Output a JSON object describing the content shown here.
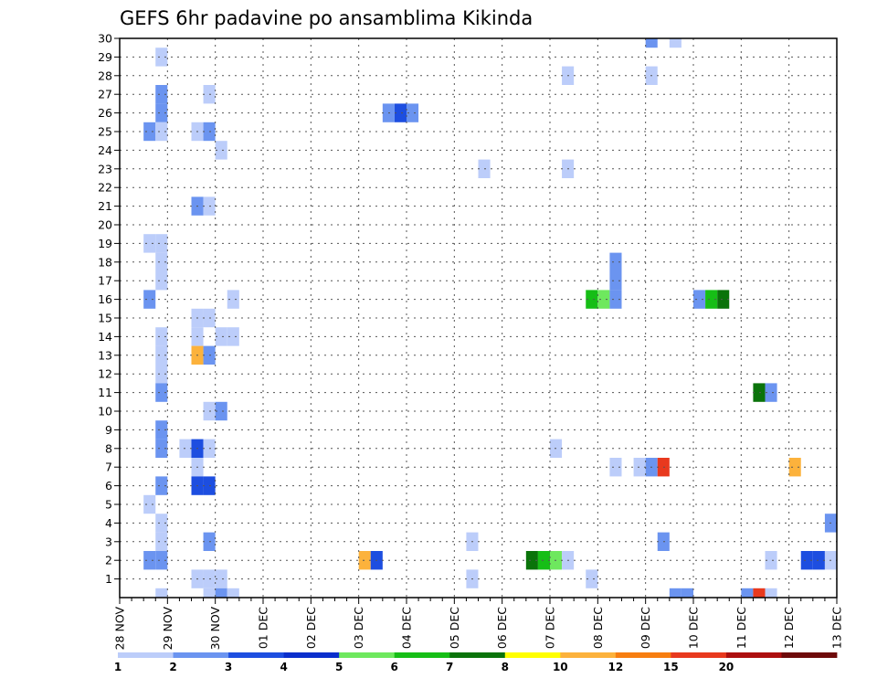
{
  "chart_data": {
    "type": "heatmap",
    "title": "GEFS 6hr padavine po ansamblima Kikinda",
    "xlabel": "",
    "ylabel": "",
    "x_start_label": "28 NOV",
    "x_ticks": [
      "28 NOV",
      "29 NOV",
      "30 NOV",
      "01 DEC",
      "02 DEC",
      "03 DEC",
      "04 DEC",
      "05 DEC",
      "06 DEC",
      "07 DEC",
      "08 DEC",
      "09 DEC",
      "10 DEC",
      "11 DEC",
      "12 DEC",
      "13 DEC"
    ],
    "x_range_days": [
      0,
      15
    ],
    "steps_per_day": 4,
    "y_ticks": [
      1,
      2,
      3,
      4,
      5,
      6,
      7,
      8,
      9,
      10,
      11,
      12,
      13,
      14,
      15,
      16,
      17,
      18,
      19,
      20,
      21,
      22,
      23,
      24,
      25,
      26,
      27,
      28,
      29,
      30
    ],
    "y_range": [
      0,
      30
    ],
    "grid": true,
    "colorbar": {
      "boundaries": [
        "1",
        "2",
        "3",
        "4",
        "5",
        "6",
        "7",
        "8",
        "10",
        "12",
        "15",
        "20"
      ],
      "colors": [
        "#bccdfa",
        "#6b94f0",
        "#1d4ee0",
        "#0a2fcc",
        "#6ee85e",
        "#16be16",
        "#0a730a",
        "#ffff00",
        "#fcb23c",
        "#f77e10",
        "#e8391e",
        "#ad0f0f",
        "#6e0a0a"
      ]
    },
    "cell_classes": [
      "1-2",
      "2-3",
      "3-4",
      "4-5",
      "5-6",
      "6-7",
      "7-8",
      "8-10",
      "10-12",
      "12-15",
      "15-20",
      ">20"
    ],
    "cells": [
      {
        "member": 30,
        "step": 44,
        "class": 1
      },
      {
        "member": 30,
        "step": 46,
        "class": 0
      },
      {
        "member": 29,
        "step": 3,
        "class": 0
      },
      {
        "member": 28,
        "step": 37,
        "class": 0
      },
      {
        "member": 28,
        "step": 44,
        "class": 0
      },
      {
        "member": 27,
        "step": 3,
        "class": 1
      },
      {
        "member": 27,
        "step": 7,
        "class": 0
      },
      {
        "member": 26,
        "step": 3,
        "class": 1
      },
      {
        "member": 26,
        "step": 22,
        "class": 1
      },
      {
        "member": 26,
        "step": 23,
        "class": 2
      },
      {
        "member": 26,
        "step": 24,
        "class": 1
      },
      {
        "member": 25,
        "step": 2,
        "class": 1
      },
      {
        "member": 25,
        "step": 3,
        "class": 0
      },
      {
        "member": 25,
        "step": 6,
        "class": 0
      },
      {
        "member": 25,
        "step": 7,
        "class": 1
      },
      {
        "member": 24,
        "step": 8,
        "class": 0
      },
      {
        "member": 23,
        "step": 30,
        "class": 0
      },
      {
        "member": 23,
        "step": 37,
        "class": 0
      },
      {
        "member": 21,
        "step": 6,
        "class": 1
      },
      {
        "member": 21,
        "step": 7,
        "class": 0
      },
      {
        "member": 19,
        "step": 2,
        "class": 0
      },
      {
        "member": 19,
        "step": 3,
        "class": 0
      },
      {
        "member": 18,
        "step": 3,
        "class": 0
      },
      {
        "member": 18,
        "step": 41,
        "class": 1
      },
      {
        "member": 17,
        "step": 3,
        "class": 0
      },
      {
        "member": 17,
        "step": 41,
        "class": 1
      },
      {
        "member": 16,
        "step": 2,
        "class": 1
      },
      {
        "member": 16,
        "step": 9,
        "class": 0
      },
      {
        "member": 16,
        "step": 39,
        "class": 5
      },
      {
        "member": 16,
        "step": 40,
        "class": 4
      },
      {
        "member": 16,
        "step": 41,
        "class": 1
      },
      {
        "member": 16,
        "step": 48,
        "class": 1
      },
      {
        "member": 16,
        "step": 49,
        "class": 5
      },
      {
        "member": 16,
        "step": 50,
        "class": 6
      },
      {
        "member": 15,
        "step": 6,
        "class": 0
      },
      {
        "member": 15,
        "step": 7,
        "class": 0
      },
      {
        "member": 14,
        "step": 3,
        "class": 0
      },
      {
        "member": 14,
        "step": 6,
        "class": 0
      },
      {
        "member": 14,
        "step": 8,
        "class": 0
      },
      {
        "member": 14,
        "step": 9,
        "class": 0
      },
      {
        "member": 13,
        "step": 3,
        "class": 0
      },
      {
        "member": 13,
        "step": 6,
        "class": 8
      },
      {
        "member": 13,
        "step": 7,
        "class": 1
      },
      {
        "member": 12,
        "step": 3,
        "class": 0
      },
      {
        "member": 11,
        "step": 3,
        "class": 1
      },
      {
        "member": 11,
        "step": 53,
        "class": 6
      },
      {
        "member": 11,
        "step": 54,
        "class": 1
      },
      {
        "member": 10,
        "step": 7,
        "class": 0
      },
      {
        "member": 10,
        "step": 8,
        "class": 1
      },
      {
        "member": 9,
        "step": 3,
        "class": 1
      },
      {
        "member": 8,
        "step": 3,
        "class": 1
      },
      {
        "member": 8,
        "step": 5,
        "class": 0
      },
      {
        "member": 8,
        "step": 6,
        "class": 2
      },
      {
        "member": 8,
        "step": 7,
        "class": 0
      },
      {
        "member": 8,
        "step": 36,
        "class": 0
      },
      {
        "member": 7,
        "step": 6,
        "class": 0
      },
      {
        "member": 7,
        "step": 41,
        "class": 0
      },
      {
        "member": 7,
        "step": 43,
        "class": 0
      },
      {
        "member": 7,
        "step": 44,
        "class": 1
      },
      {
        "member": 7,
        "step": 45,
        "class": 10
      },
      {
        "member": 7,
        "step": 56,
        "class": 8
      },
      {
        "member": 6,
        "step": 3,
        "class": 1
      },
      {
        "member": 6,
        "step": 6,
        "class": 2
      },
      {
        "member": 6,
        "step": 7,
        "class": 2
      },
      {
        "member": 5,
        "step": 2,
        "class": 0
      },
      {
        "member": 4,
        "step": 3,
        "class": 0
      },
      {
        "member": 4,
        "step": 59,
        "class": 1
      },
      {
        "member": 3,
        "step": 3,
        "class": 0
      },
      {
        "member": 3,
        "step": 7,
        "class": 1
      },
      {
        "member": 3,
        "step": 29,
        "class": 0
      },
      {
        "member": 3,
        "step": 45,
        "class": 1
      },
      {
        "member": 2,
        "step": 2,
        "class": 1
      },
      {
        "member": 2,
        "step": 3,
        "class": 1
      },
      {
        "member": 2,
        "step": 20,
        "class": 8
      },
      {
        "member": 2,
        "step": 21,
        "class": 2
      },
      {
        "member": 2,
        "step": 34,
        "class": 6
      },
      {
        "member": 2,
        "step": 35,
        "class": 5
      },
      {
        "member": 2,
        "step": 36,
        "class": 4
      },
      {
        "member": 2,
        "step": 37,
        "class": 0
      },
      {
        "member": 2,
        "step": 54,
        "class": 0
      },
      {
        "member": 2,
        "step": 57,
        "class": 2
      },
      {
        "member": 2,
        "step": 58,
        "class": 2
      },
      {
        "member": 2,
        "step": 59,
        "class": 0
      },
      {
        "member": 1,
        "step": 6,
        "class": 0
      },
      {
        "member": 1,
        "step": 7,
        "class": 0
      },
      {
        "member": 1,
        "step": 8,
        "class": 0
      },
      {
        "member": 1,
        "step": 29,
        "class": 0
      },
      {
        "member": 1,
        "step": 39,
        "class": 0
      },
      {
        "member": 0,
        "step": 3,
        "class": 0
      },
      {
        "member": 0,
        "step": 7,
        "class": 0
      },
      {
        "member": 0,
        "step": 8,
        "class": 1
      },
      {
        "member": 0,
        "step": 9,
        "class": 0
      },
      {
        "member": 0,
        "step": 46,
        "class": 1
      },
      {
        "member": 0,
        "step": 47,
        "class": 1
      },
      {
        "member": 0,
        "step": 52,
        "class": 1
      },
      {
        "member": 0,
        "step": 53,
        "class": 10
      },
      {
        "member": 0,
        "step": 54,
        "class": 0
      }
    ]
  }
}
